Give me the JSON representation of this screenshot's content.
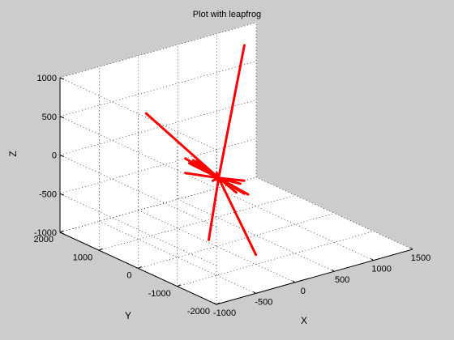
{
  "chart_data": {
    "type": "line",
    "view": "3d",
    "title": "Plot with leapfrog",
    "xlabel": "X",
    "ylabel": "Y",
    "zlabel": "Z",
    "xlim": [
      -1000,
      1500
    ],
    "ylim": [
      -2000,
      2000
    ],
    "zlim": [
      -1000,
      1000
    ],
    "xticks": [
      -1000,
      -500,
      0,
      500,
      1000,
      1500
    ],
    "yticks": [
      -2000,
      -1000,
      0,
      1000,
      2000
    ],
    "zticks": [
      -1000,
      -500,
      0,
      500,
      1000
    ],
    "xtick_labels": [
      "-1000",
      "-500",
      "0",
      "500",
      "1000",
      "1500"
    ],
    "ytick_labels": [
      "-2000",
      "-1000",
      "0",
      "1000",
      "2000"
    ],
    "ztick_labels": [
      "-1000",
      "-500",
      "0",
      "500",
      "1000"
    ],
    "grid": true,
    "box": true,
    "line_color": "#ff0000",
    "background_color": "#cccccc",
    "axes_color": "#ffffff",
    "series": [
      {
        "points": [
          [
            -350,
            -500,
            -700
          ],
          [
            60,
            70,
            -150
          ],
          [
            1150,
            1600,
            900
          ]
        ]
      },
      {
        "points": [
          [
            -400,
            1000,
            600
          ],
          [
            60,
            70,
            -150
          ],
          [
            100,
            -800,
            -950
          ]
        ]
      },
      {
        "points": [
          [
            -300,
            0,
            200
          ],
          [
            60,
            70,
            -150
          ]
        ]
      },
      {
        "points": [
          [
            -150,
            200,
            50
          ],
          [
            60,
            70,
            -150
          ],
          [
            400,
            200,
            -350
          ]
        ]
      },
      {
        "points": [
          [
            -250,
            300,
            -50
          ],
          [
            60,
            70,
            -150
          ],
          [
            300,
            -100,
            -380
          ]
        ]
      },
      {
        "points": [
          [
            0,
            500,
            0
          ],
          [
            60,
            70,
            -150
          ],
          [
            250,
            -300,
            -330
          ]
        ]
      },
      {
        "points": [
          [
            -100,
            -100,
            -100
          ],
          [
            60,
            70,
            -150
          ],
          [
            200,
            400,
            -200
          ]
        ]
      },
      {
        "points": [
          [
            -200,
            400,
            100
          ],
          [
            60,
            70,
            -150
          ],
          [
            350,
            0,
            -250
          ]
        ]
      },
      {
        "points": [
          [
            -50,
            600,
            -50
          ],
          [
            60,
            70,
            -150
          ],
          [
            150,
            -200,
            -300
          ]
        ]
      }
    ]
  }
}
